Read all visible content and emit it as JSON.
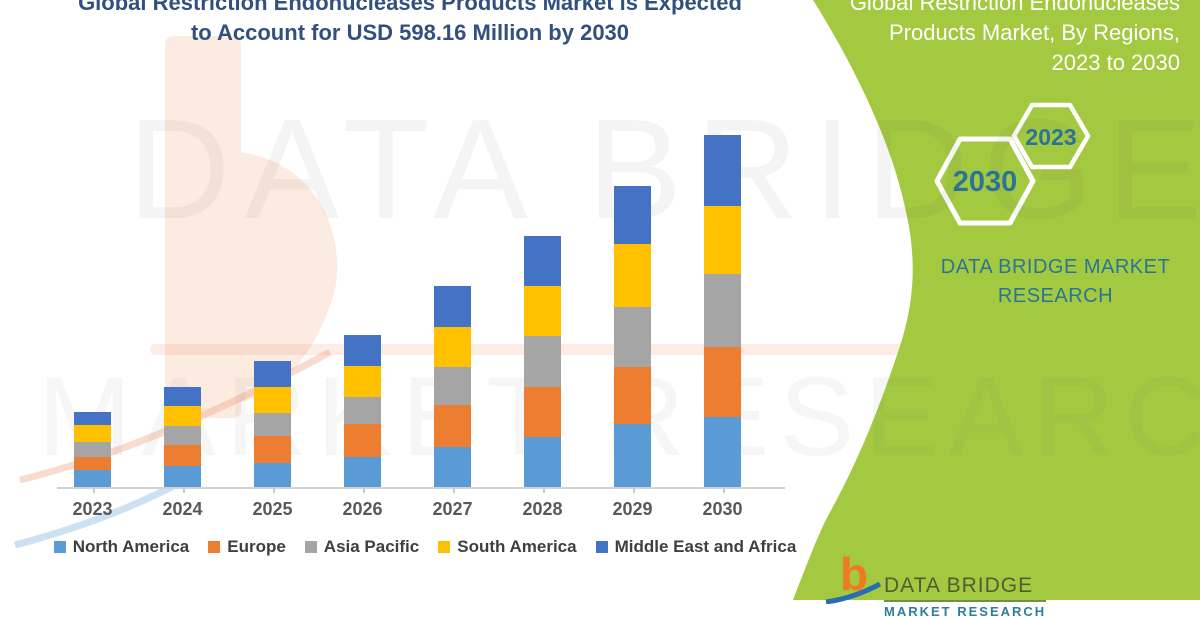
{
  "theme": {
    "panel_green": "#A3C940",
    "title_navy": "#32507F",
    "teal_accent": "#2C7495",
    "axis_label_gray": "#595959",
    "legend_text_gray": "#3F3F3F",
    "axis_line_gray": "#D2D2D2",
    "footer_text_green": "#515E33",
    "footer_orange": "#EE7B22",
    "footer_swoosh_blue": "#2B6CB0",
    "watermark_peach": "#FCEBE0"
  },
  "header": {
    "title_line1": "Global Restriction Endonucleases Products Market is Expected",
    "title_line2": "to Account for USD 598.16 Million by 2030"
  },
  "side_panel": {
    "title_lines": [
      "Global Restriction Endonucleases",
      "Products Market, By Regions,",
      "2023 to 2030"
    ],
    "hexagons": [
      {
        "label": "2030"
      },
      {
        "label": "2023"
      }
    ],
    "brand_line1": "DATA BRIDGE MARKET",
    "brand_line2": "RESEARCH"
  },
  "watermarks": {
    "line1": "DATA BRIDGE",
    "line2": "MARKET RESEARCH"
  },
  "footer_logo": {
    "glyph": "b",
    "name_line": "DATA BRIDGE",
    "sub_line": "MARKET RESEARCH"
  },
  "chart_data": {
    "type": "bar",
    "stacked": true,
    "title": "Global Restriction Endonucleases Products Market is Expected to Account for USD 598.16 Million by 2030",
    "unit": "USD Million",
    "stated_value": "USD 598.16 Million by 2030",
    "categories": [
      "2023",
      "2024",
      "2025",
      "2026",
      "2027",
      "2028",
      "2029",
      "2030"
    ],
    "series": [
      {
        "name": "North America",
        "color": "#5B9BD5",
        "values": [
          28.9,
          35.7,
          40.8,
          50.9,
          67.9,
          84.9,
          107.0,
          118.9
        ]
      },
      {
        "name": "Europe",
        "color": "#ED7D31",
        "values": [
          22.1,
          35.7,
          45.8,
          56.0,
          71.3,
          84.9,
          96.8,
          118.9
        ]
      },
      {
        "name": "Asia Pacific",
        "color": "#A5A5A5",
        "values": [
          25.5,
          32.3,
          39.1,
          45.8,
          64.5,
          86.6,
          101.9,
          123.9
        ]
      },
      {
        "name": "South America",
        "color": "#FFC000",
        "values": [
          28.9,
          34.0,
          44.1,
          52.6,
          67.9,
          84.9,
          107.0,
          115.5
        ]
      },
      {
        "name": "Middle East and Africa",
        "color": "#4472C4",
        "values": [
          22.1,
          32.3,
          44.1,
          52.6,
          69.6,
          84.9,
          98.5,
          121.0
        ]
      }
    ],
    "totals_estimated": [
      127.5,
      170.0,
      213.9,
      257.9,
      341.2,
      426.2,
      511.2,
      598.2
    ],
    "xlabel": "",
    "ylabel": "",
    "y_axis_shown": false,
    "grid": false,
    "legend_position": "bottom",
    "note": "Only the 2030 total (USD 598.16 Million) is printed on the image; per-region values are estimated from stacked bar segment heights."
  }
}
